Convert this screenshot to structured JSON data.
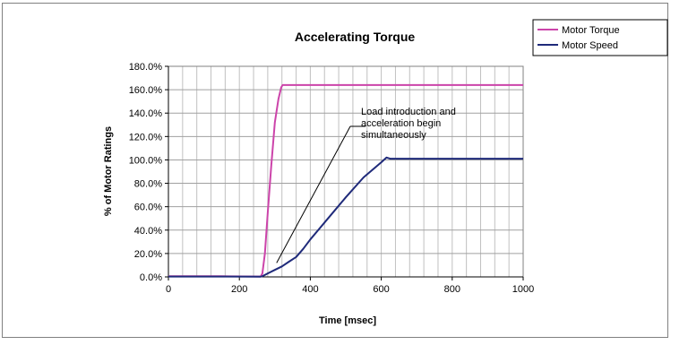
{
  "chart_data": {
    "type": "line",
    "title": "Accelerating Torque",
    "xlabel": "Time [msec]",
    "ylabel": "% of Motor Ratings",
    "xlim": [
      0,
      1000
    ],
    "ylim": [
      0,
      180
    ],
    "x_ticks": [
      "0",
      "200",
      "400",
      "600",
      "800",
      "1000"
    ],
    "x_tick_values": [
      0,
      200,
      400,
      600,
      800,
      1000
    ],
    "y_ticks": [
      "0.0%",
      "20.0%",
      "40.0%",
      "60.0%",
      "80.0%",
      "100.0%",
      "120.0%",
      "140.0%",
      "160.0%",
      "180.0%"
    ],
    "y_tick_values": [
      0,
      20,
      40,
      60,
      80,
      100,
      120,
      140,
      160,
      180
    ],
    "grid": true,
    "legend_position": "top-right",
    "annotation": {
      "lines": [
        "Load introduction and",
        "acceleration begin",
        "simultaneously"
      ],
      "points_to": {
        "x": 305,
        "y": 12
      }
    },
    "series": [
      {
        "name": "Motor Torque",
        "color": "#CC44AA",
        "x": [
          0,
          150,
          260,
          265,
          272,
          280,
          290,
          300,
          310,
          318,
          322,
          330,
          400,
          500,
          600,
          700,
          800,
          900,
          1000
        ],
        "y": [
          0.5,
          0.5,
          0.3,
          3,
          20,
          55,
          95,
          132,
          152,
          162,
          164,
          164,
          164,
          164,
          164,
          164,
          164,
          164,
          164
        ]
      },
      {
        "name": "Motor Speed",
        "color": "#1F2A7A",
        "x": [
          0,
          150,
          260,
          265,
          280,
          300,
          320,
          340,
          360,
          380,
          400,
          450,
          500,
          550,
          600,
          615,
          625,
          650,
          700,
          800,
          900,
          1000
        ],
        "y": [
          0.3,
          0.3,
          0.2,
          0.5,
          3,
          6,
          9,
          13,
          17,
          24,
          32,
          50,
          68,
          85,
          98,
          102,
          101,
          101,
          101,
          101,
          101,
          101
        ]
      }
    ]
  }
}
